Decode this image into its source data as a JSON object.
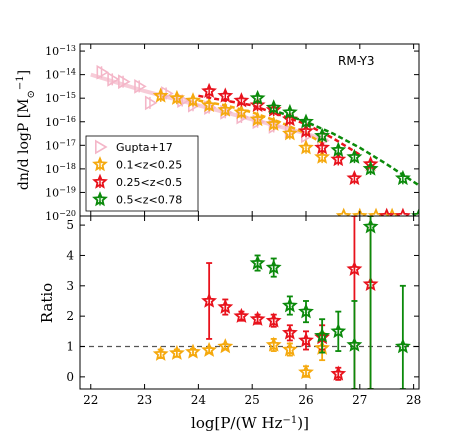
{
  "chart_data": [
    {
      "type": "scatter",
      "panel": "top",
      "annotation": "RM-Y3",
      "ylabel": "dn/d logP [M",
      "ylabel_sub": "⊙",
      "ylabel_tail": "]",
      "ylabel_sup": "−1",
      "xlim": [
        21.8,
        28.1
      ],
      "ylim_log10": [
        -20,
        -12.7
      ],
      "y_scale": "log",
      "legend_placement": "lower-left",
      "y_tick_labels": [
        {
          "v": -13,
          "base": "10",
          "exp": "−13"
        },
        {
          "v": -14,
          "base": "10",
          "exp": "−14"
        },
        {
          "v": -15,
          "base": "10",
          "exp": "−15"
        },
        {
          "v": -16,
          "base": "10",
          "exp": "−16"
        },
        {
          "v": -17,
          "base": "10",
          "exp": "−17"
        },
        {
          "v": -18,
          "base": "10",
          "exp": "−18"
        },
        {
          "v": -19,
          "base": "10",
          "exp": "−19"
        },
        {
          "v": -20,
          "base": "10",
          "exp": "−20"
        }
      ],
      "series": [
        {
          "name": "Gupta+17",
          "marker": "triangle-right",
          "color": "#f4b6c8",
          "points": [
            [
              22.2,
              -13.9
            ],
            [
              22.4,
              -14.2
            ],
            [
              22.6,
              -14.3
            ],
            [
              22.9,
              -14.5
            ],
            [
              23.1,
              -15.2
            ],
            [
              23.4,
              -14.8
            ],
            [
              23.7,
              -15.1
            ],
            [
              23.9,
              -15.3
            ],
            [
              24.2,
              -15.4
            ],
            [
              24.5,
              -15.6
            ],
            [
              24.8,
              -15.8
            ],
            [
              25.1,
              -16.0
            ],
            [
              25.4,
              -16.2
            ],
            [
              25.7,
              -16.4
            ],
            [
              26.0,
              -16.6
            ],
            [
              26.3,
              -16.8
            ]
          ],
          "fit_line": [
            [
              22.0,
              -14.0
            ],
            [
              23.0,
              -14.7
            ],
            [
              24.0,
              -15.3
            ],
            [
              25.0,
              -15.9
            ],
            [
              26.0,
              -16.5
            ],
            [
              26.4,
              -16.8
            ]
          ]
        },
        {
          "name": "0.1<z<0.25",
          "marker": "star",
          "color": "#f5a90e",
          "points": [
            [
              23.3,
              -14.9
            ],
            [
              23.6,
              -15.0
            ],
            [
              23.9,
              -15.1
            ],
            [
              24.2,
              -15.3
            ],
            [
              24.5,
              -15.5
            ],
            [
              24.8,
              -15.6
            ],
            [
              25.1,
              -15.9
            ],
            [
              25.4,
              -16.1
            ],
            [
              25.7,
              -16.5
            ],
            [
              26.0,
              -17.1
            ],
            [
              26.3,
              -17.5
            ],
            [
              26.7,
              -20
            ],
            [
              27.0,
              -20
            ],
            [
              27.3,
              -20
            ],
            [
              27.6,
              -20
            ]
          ],
          "fit_line": [
            [
              24.0,
              -15.1
            ],
            [
              24.5,
              -15.3
            ],
            [
              25.0,
              -15.6
            ],
            [
              25.5,
              -16.0
            ],
            [
              26.0,
              -16.5
            ],
            [
              26.3,
              -16.9
            ]
          ]
        },
        {
          "name": "0.25<z<0.5",
          "marker": "star",
          "color": "#e8121c",
          "points": [
            [
              24.2,
              -14.7
            ],
            [
              24.5,
              -14.9
            ],
            [
              24.8,
              -15.1
            ],
            [
              25.1,
              -15.3
            ],
            [
              25.4,
              -15.5
            ],
            [
              25.7,
              -15.9
            ],
            [
              26.0,
              -16.4
            ],
            [
              26.3,
              -17.1
            ],
            [
              26.6,
              -17.6
            ],
            [
              26.9,
              -18.4
            ],
            [
              27.2,
              -17.8
            ],
            [
              27.5,
              -20
            ],
            [
              27.8,
              -20
            ]
          ],
          "fit_line": [
            [
              24.0,
              -14.9
            ],
            [
              25.0,
              -15.3
            ],
            [
              26.0,
              -16.1
            ],
            [
              26.5,
              -16.7
            ],
            [
              27.0,
              -17.4
            ]
          ]
        },
        {
          "name": "0.5<z<0.78",
          "marker": "star",
          "color": "#0b8a0b",
          "points": [
            [
              25.1,
              -15.0
            ],
            [
              25.4,
              -15.4
            ],
            [
              25.7,
              -15.6
            ],
            [
              26.0,
              -16.0
            ],
            [
              26.3,
              -16.6
            ],
            [
              26.6,
              -17.2
            ],
            [
              26.9,
              -17.5
            ],
            [
              27.2,
              -18.0
            ],
            [
              27.8,
              -18.4
            ],
            [
              28.1,
              -20
            ]
          ],
          "fit_line": [
            [
              25.5,
              -15.6
            ],
            [
              26.0,
              -16.0
            ],
            [
              26.5,
              -16.5
            ],
            [
              27.0,
              -17.1
            ],
            [
              27.5,
              -17.8
            ],
            [
              28.1,
              -18.7
            ]
          ]
        }
      ]
    },
    {
      "type": "scatter",
      "panel": "bottom",
      "xlabel": "log[P/(W Hz",
      "xlabel_sup": "−1",
      "xlabel_tail": ")]",
      "ylabel": "Ratio",
      "xlim": [
        21.8,
        28.1
      ],
      "ylim": [
        -0.4,
        5.3
      ],
      "reference_line": 1,
      "x_ticks": [
        22,
        23,
        24,
        25,
        26,
        27,
        28
      ],
      "y_ticks": [
        0,
        1,
        2,
        3,
        4,
        5
      ],
      "series": [
        {
          "name": "0.1<z<0.25",
          "marker": "star",
          "color": "#f5a90e",
          "points": [
            {
              "x": 23.3,
              "y": 0.75,
              "lo": 0.62,
              "hi": 0.9
            },
            {
              "x": 23.6,
              "y": 0.78,
              "lo": 0.66,
              "hi": 0.9
            },
            {
              "x": 23.9,
              "y": 0.82,
              "lo": 0.72,
              "hi": 0.92
            },
            {
              "x": 24.2,
              "y": 0.88,
              "lo": 0.8,
              "hi": 0.96
            },
            {
              "x": 24.5,
              "y": 1.0,
              "lo": 0.92,
              "hi": 1.08
            },
            {
              "x": 25.4,
              "y": 1.05,
              "lo": 0.85,
              "hi": 1.25
            },
            {
              "x": 25.7,
              "y": 0.9,
              "lo": 0.7,
              "hi": 1.1
            },
            {
              "x": 26.0,
              "y": 0.15,
              "lo": 0.0,
              "hi": 0.35
            },
            {
              "x": 26.3,
              "y": 0.95,
              "lo": 0.55,
              "hi": 1.45
            }
          ]
        },
        {
          "name": "0.25<z<0.5",
          "marker": "star",
          "color": "#e8121c",
          "points": [
            {
              "x": 24.2,
              "y": 2.5,
              "lo": 1.25,
              "hi": 3.75
            },
            {
              "x": 24.5,
              "y": 2.3,
              "lo": 2.05,
              "hi": 2.55
            },
            {
              "x": 24.8,
              "y": 2.0,
              "lo": 1.85,
              "hi": 2.15
            },
            {
              "x": 25.1,
              "y": 1.9,
              "lo": 1.75,
              "hi": 2.05
            },
            {
              "x": 25.4,
              "y": 1.85,
              "lo": 1.65,
              "hi": 2.05
            },
            {
              "x": 25.7,
              "y": 1.45,
              "lo": 1.2,
              "hi": 1.7
            },
            {
              "x": 26.0,
              "y": 1.2,
              "lo": 0.9,
              "hi": 1.5
            },
            {
              "x": 26.3,
              "y": 1.3,
              "lo": 0.9,
              "hi": 1.7
            },
            {
              "x": 26.6,
              "y": 0.1,
              "lo": -0.1,
              "hi": 0.3
            },
            {
              "x": 26.9,
              "y": 3.55,
              "lo": -0.4,
              "hi": 5.3
            },
            {
              "x": 27.2,
              "y": 3.05,
              "lo": -0.4,
              "hi": 5.3
            }
          ]
        },
        {
          "name": "0.5<z<0.78",
          "marker": "star",
          "color": "#0b8a0b",
          "points": [
            {
              "x": 25.1,
              "y": 3.75,
              "lo": 3.5,
              "hi": 4.0
            },
            {
              "x": 25.4,
              "y": 3.6,
              "lo": 3.3,
              "hi": 3.9
            },
            {
              "x": 25.7,
              "y": 2.35,
              "lo": 2.05,
              "hi": 2.65
            },
            {
              "x": 26.0,
              "y": 2.15,
              "lo": 1.8,
              "hi": 2.5
            },
            {
              "x": 26.3,
              "y": 1.35,
              "lo": 0.8,
              "hi": 1.9
            },
            {
              "x": 26.6,
              "y": 1.5,
              "lo": 0.85,
              "hi": 2.15
            },
            {
              "x": 26.9,
              "y": 1.05,
              "lo": -0.4,
              "hi": 2.5
            },
            {
              "x": 27.2,
              "y": 4.95,
              "lo": -0.4,
              "hi": 5.3
            },
            {
              "x": 27.8,
              "y": 1.0,
              "lo": -0.4,
              "hi": 3.0
            }
          ]
        }
      ]
    }
  ]
}
